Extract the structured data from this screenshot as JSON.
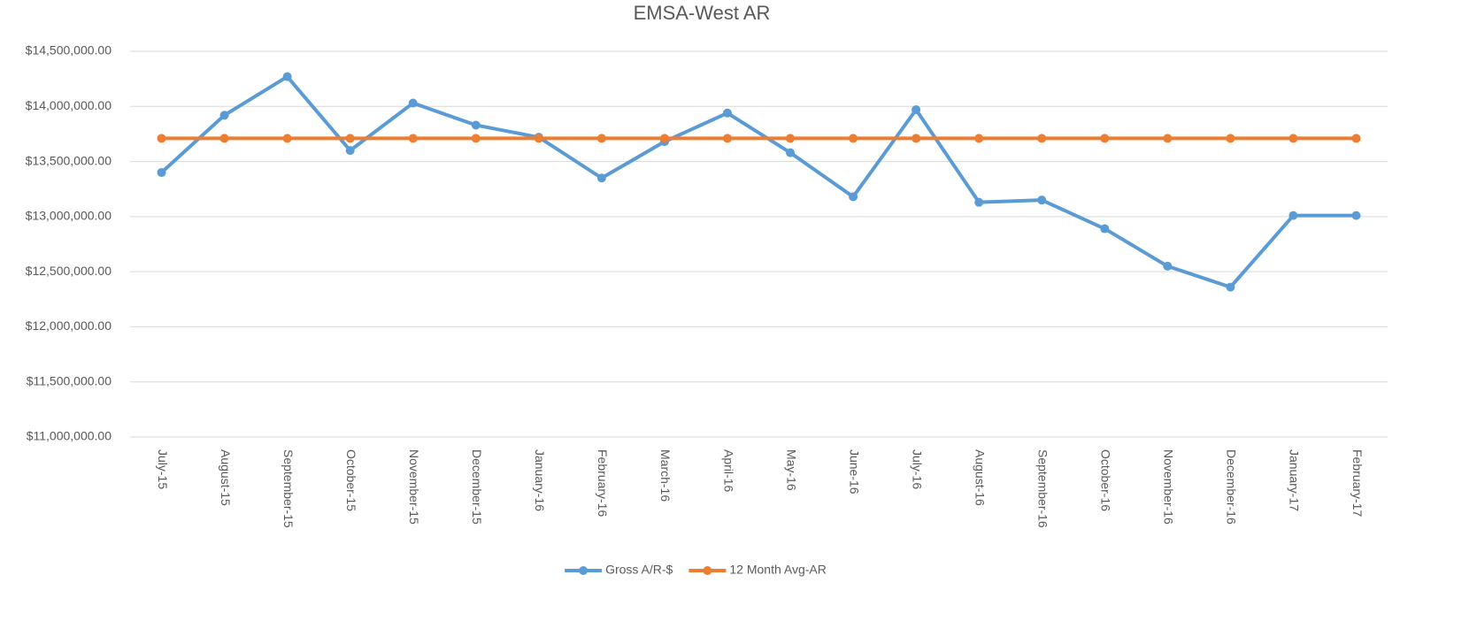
{
  "chart_data": {
    "type": "line",
    "title": "EMSA-West AR",
    "categories": [
      "July-15",
      "August-15",
      "September-15",
      "October-15",
      "November-15",
      "December-15",
      "January-16",
      "February-16",
      "March-16",
      "April-16",
      "May-16",
      "June-16",
      "July-16",
      "August-16",
      "September-16",
      "October-16",
      "November-16",
      "December-16",
      "January-17",
      "February-17"
    ],
    "series": [
      {
        "name": "Gross A/R-$",
        "color": "#5b9bd5",
        "values": [
          13400000,
          13920000,
          14270000,
          13600000,
          14030000,
          13830000,
          13720000,
          13350000,
          13680000,
          13940000,
          13580000,
          13180000,
          13970000,
          13130000,
          13150000,
          12890000,
          12550000,
          12360000,
          13010000,
          13010000
        ]
      },
      {
        "name": "12 Month Avg-AR",
        "color": "#ed7d31",
        "values": [
          13710000,
          13710000,
          13710000,
          13710000,
          13710000,
          13710000,
          13710000,
          13710000,
          13710000,
          13710000,
          13710000,
          13710000,
          13710000,
          13710000,
          13710000,
          13710000,
          13710000,
          13710000,
          13710000,
          13710000
        ]
      }
    ],
    "ylim": [
      11000000,
      14500000
    ],
    "yticks": [
      {
        "value": 11000000,
        "label": "$11,000,000.00"
      },
      {
        "value": 11500000,
        "label": "$11,500,000.00"
      },
      {
        "value": 12000000,
        "label": "$12,000,000.00"
      },
      {
        "value": 12500000,
        "label": "$12,500,000.00"
      },
      {
        "value": 13000000,
        "label": "$13,000,000.00"
      },
      {
        "value": 13500000,
        "label": "$13,500,000.00"
      },
      {
        "value": 14000000,
        "label": "$14,000,000.00"
      },
      {
        "value": 14500000,
        "label": "$14,500,000.00"
      }
    ],
    "grid": true,
    "legend": "bottom"
  }
}
